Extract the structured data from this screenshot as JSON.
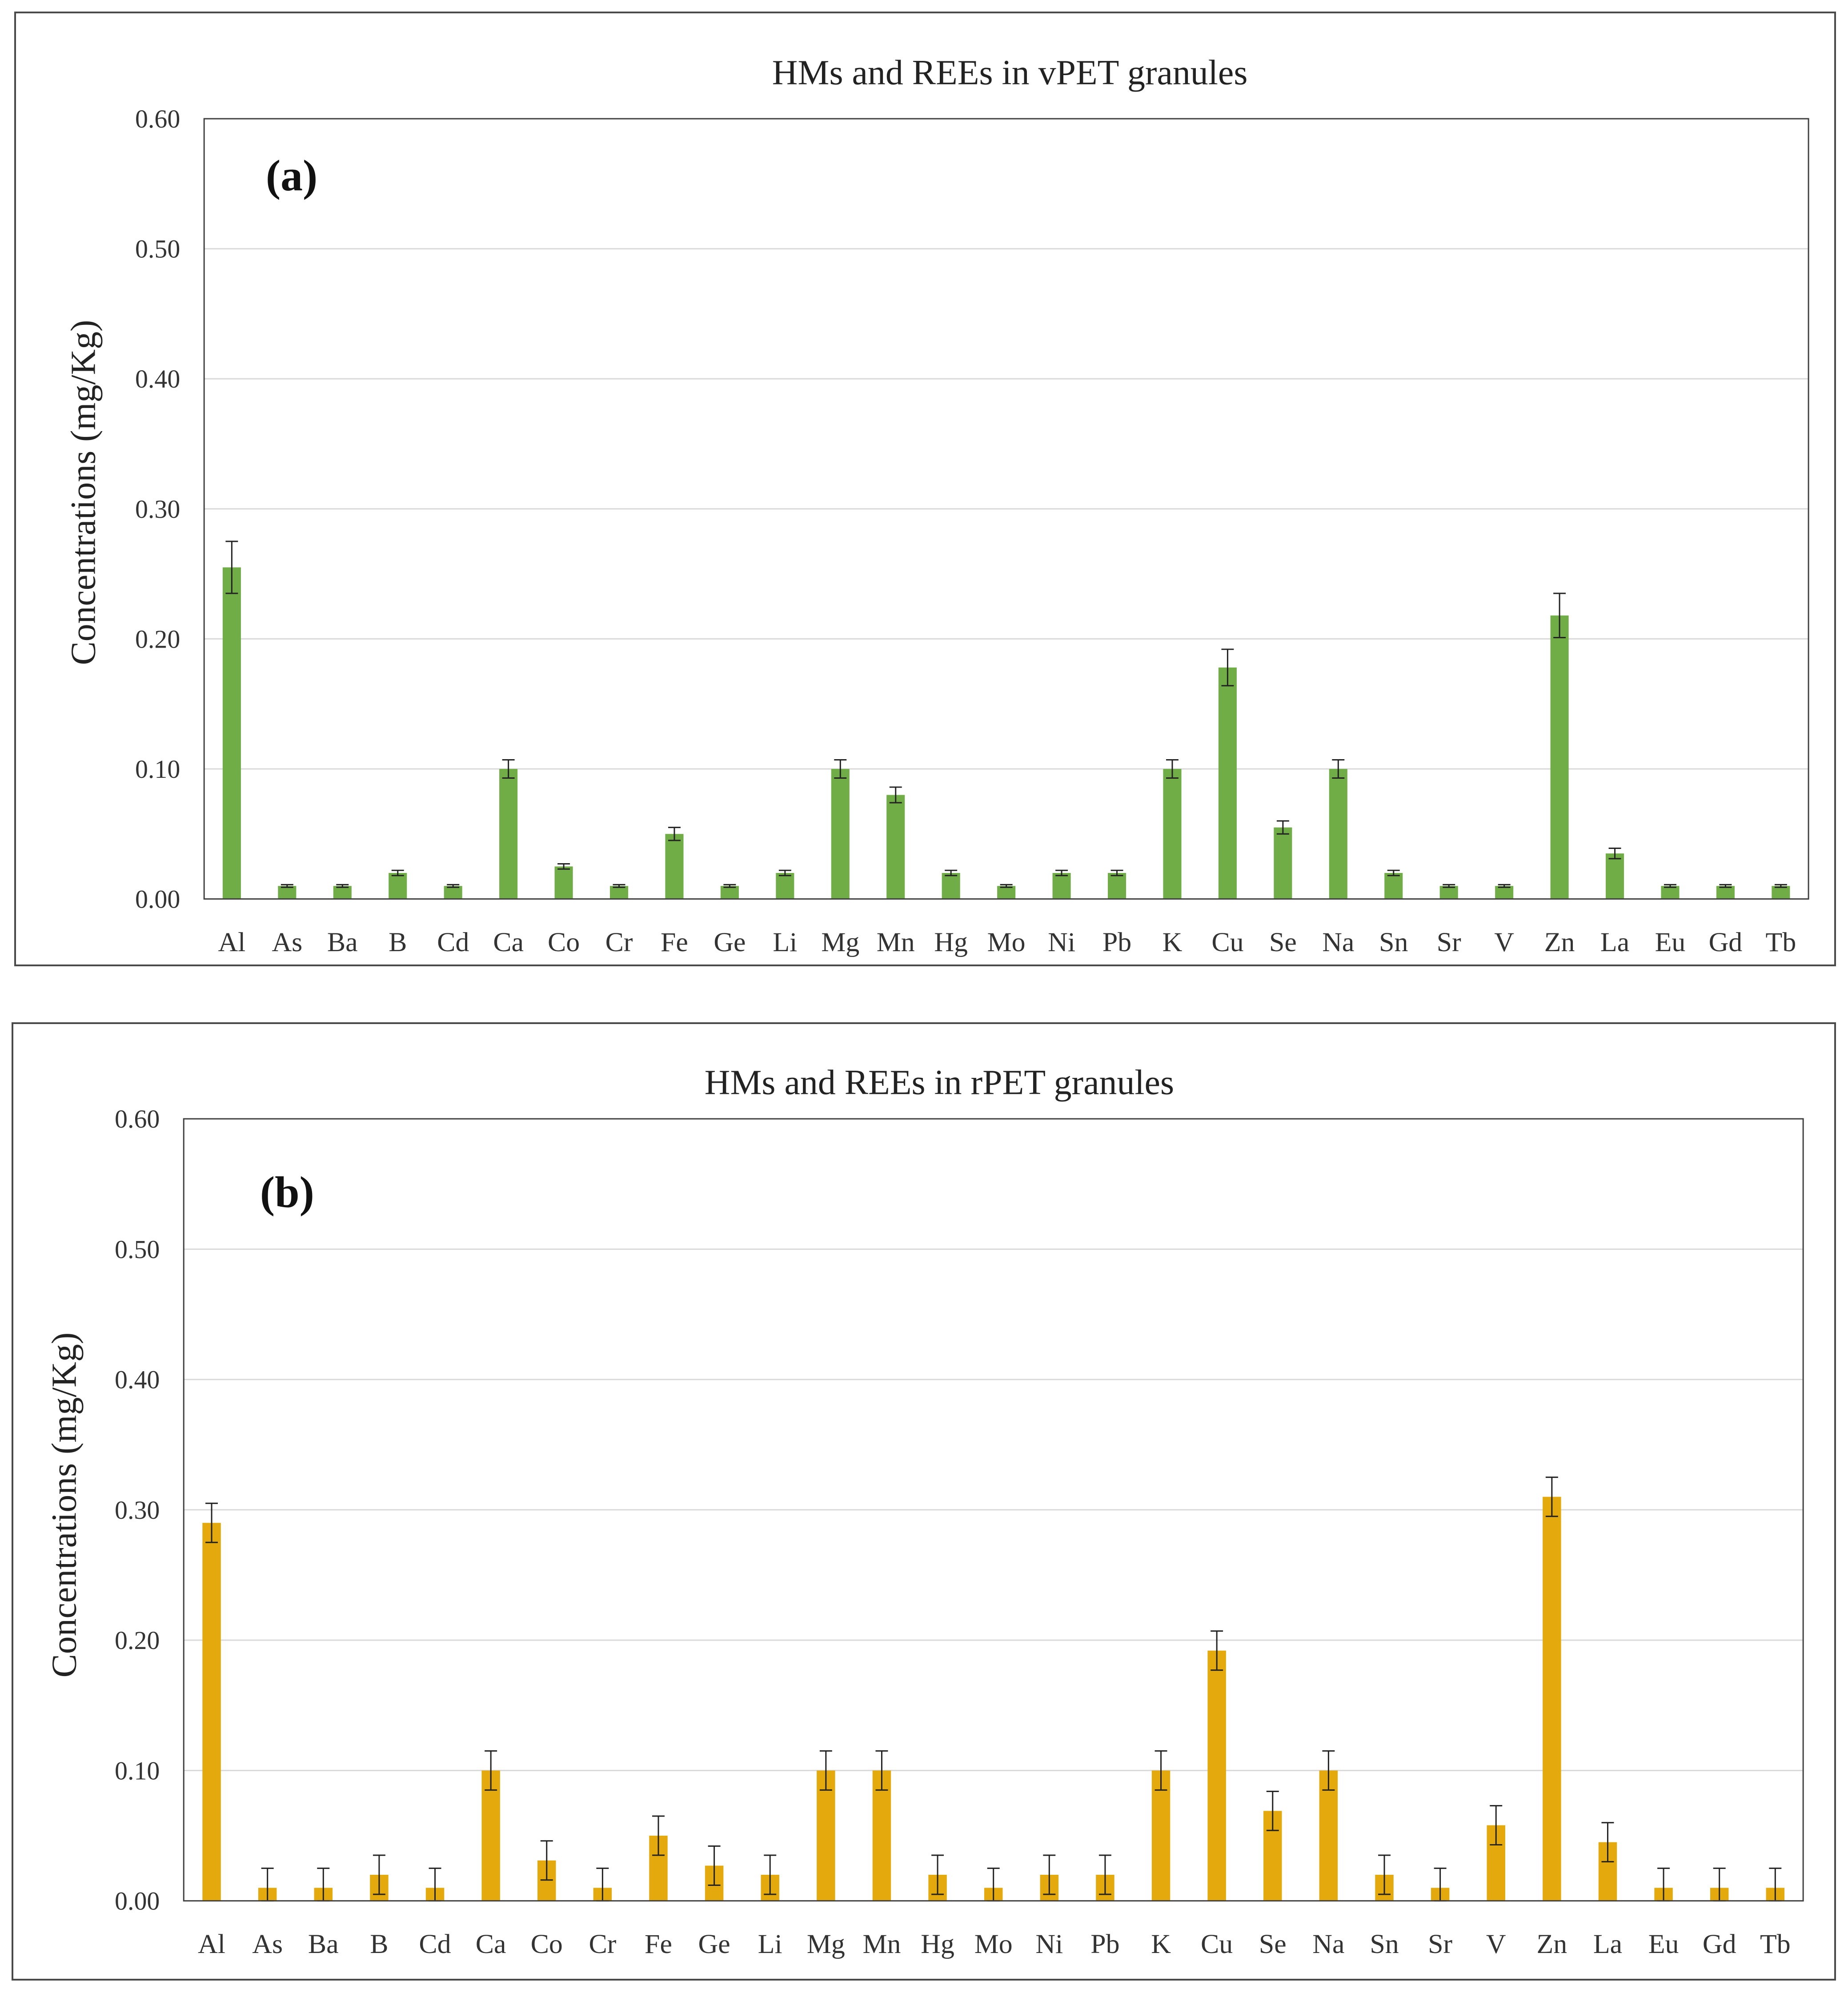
{
  "chart_data": [
    {
      "panel": "(a)",
      "type": "bar",
      "title": "HMs and REEs in vPET granules",
      "xlabel": "",
      "ylabel": "Concentrations (mg/Kg)",
      "ylim": [
        0,
        0.6
      ],
      "yticks": [
        "0.00",
        "0.10",
        "0.20",
        "0.30",
        "0.40",
        "0.50",
        "0.60"
      ],
      "grid": true,
      "bar_color": "#70ad47",
      "categories": [
        "Al",
        "As",
        "Ba",
        "B",
        "Cd",
        "Ca",
        "Co",
        "Cr",
        "Fe",
        "Ge",
        "Li",
        "Mg",
        "Mn",
        "Hg",
        "Mo",
        "Ni",
        "Pb",
        "K",
        "Cu",
        "Se",
        "Na",
        "Sn",
        "Sr",
        "V",
        "Zn",
        "La",
        "Eu",
        "Gd",
        "Tb"
      ],
      "values": [
        0.255,
        0.01,
        0.01,
        0.02,
        0.01,
        0.1,
        0.025,
        0.01,
        0.05,
        0.01,
        0.02,
        0.1,
        0.08,
        0.02,
        0.01,
        0.02,
        0.02,
        0.1,
        0.178,
        0.055,
        0.1,
        0.02,
        0.01,
        0.01,
        0.218,
        0.035,
        0.01,
        0.01,
        0.01
      ],
      "errors": [
        0.02,
        0.001,
        0.001,
        0.002,
        0.001,
        0.007,
        0.002,
        0.001,
        0.005,
        0.001,
        0.002,
        0.007,
        0.006,
        0.002,
        0.001,
        0.002,
        0.002,
        0.007,
        0.014,
        0.005,
        0.007,
        0.002,
        0.001,
        0.001,
        0.017,
        0.004,
        0.001,
        0.001,
        0.001
      ]
    },
    {
      "panel": "(b)",
      "type": "bar",
      "title": "HMs and REEs in rPET granules",
      "xlabel": "",
      "ylabel": "Concentrations (mg/Kg)",
      "ylim": [
        0,
        0.6
      ],
      "yticks": [
        "0.00",
        "0.10",
        "0.20",
        "0.30",
        "0.40",
        "0.50",
        "0.60"
      ],
      "grid": true,
      "bar_color": "#e3a90d",
      "categories": [
        "Al",
        "As",
        "Ba",
        "B",
        "Cd",
        "Ca",
        "Co",
        "Cr",
        "Fe",
        "Ge",
        "Li",
        "Mg",
        "Mn",
        "Hg",
        "Mo",
        "Ni",
        "Pb",
        "K",
        "Cu",
        "Se",
        "Na",
        "Sn",
        "Sr",
        "V",
        "Zn",
        "La",
        "Eu",
        "Gd",
        "Tb"
      ],
      "values": [
        0.29,
        0.01,
        0.01,
        0.02,
        0.01,
        0.1,
        0.031,
        0.01,
        0.05,
        0.027,
        0.02,
        0.1,
        0.1,
        0.02,
        0.01,
        0.02,
        0.02,
        0.1,
        0.192,
        0.069,
        0.1,
        0.02,
        0.01,
        0.058,
        0.31,
        0.045,
        0.01,
        0.01,
        0.01
      ],
      "errors": [
        0.015,
        0.015,
        0.015,
        0.015,
        0.015,
        0.015,
        0.015,
        0.015,
        0.015,
        0.015,
        0.015,
        0.015,
        0.015,
        0.015,
        0.015,
        0.015,
        0.015,
        0.015,
        0.015,
        0.015,
        0.015,
        0.015,
        0.015,
        0.015,
        0.015,
        0.015,
        0.015,
        0.015,
        0.015
      ]
    }
  ]
}
